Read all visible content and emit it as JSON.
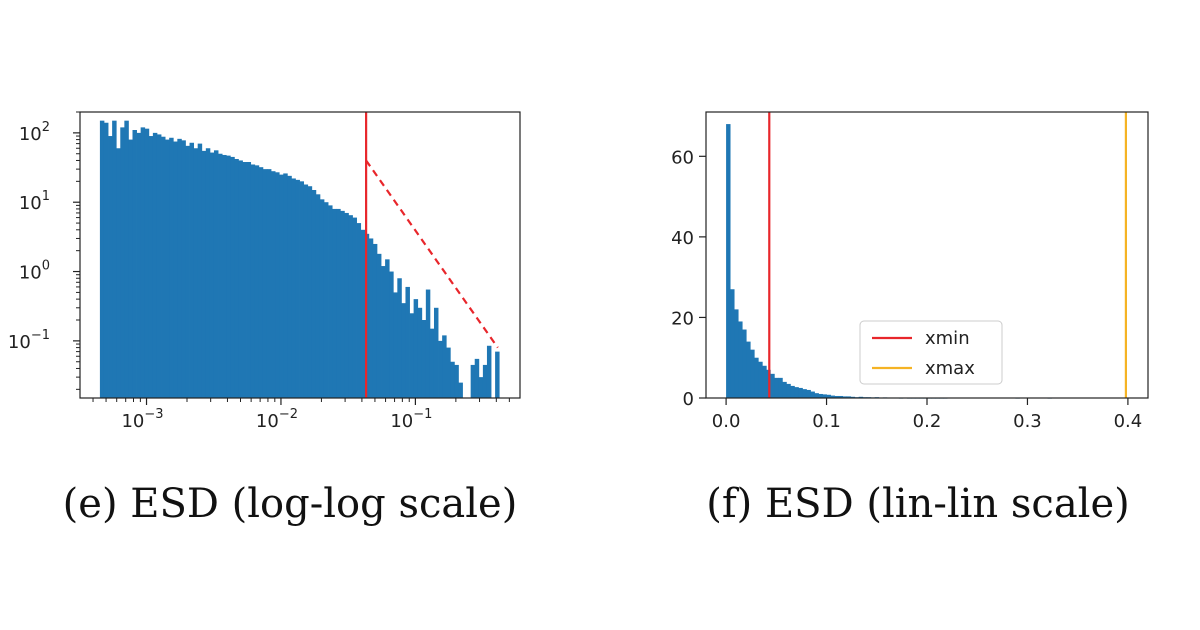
{
  "chart_data": [
    {
      "type": "bar",
      "subtype": "histogram",
      "caption": "(e) ESD (log-log scale)",
      "xscale": "log",
      "yscale": "log",
      "xlim": [
        0.00032,
        0.6
      ],
      "ylim": [
        0.015,
        200
      ],
      "xticks": [
        {
          "value": 0.001,
          "base": "10",
          "exp": "−3"
        },
        {
          "value": 0.01,
          "base": "10",
          "exp": "−2"
        },
        {
          "value": 0.1,
          "base": "10",
          "exp": "−1"
        }
      ],
      "yticks": [
        {
          "value": 100,
          "base": "10",
          "exp": "2"
        },
        {
          "value": 10,
          "base": "10",
          "exp": "1"
        },
        {
          "value": 1,
          "base": "10",
          "exp": "0"
        },
        {
          "value": 0.1,
          "base": "10",
          "exp": "−1"
        }
      ],
      "bin_range": [
        0.00045,
        0.42
      ],
      "bar_color": "#1f77b4",
      "density": [
        150,
        140,
        90,
        150,
        60,
        120,
        150,
        80,
        110,
        100,
        120,
        115,
        90,
        100,
        95,
        88,
        80,
        85,
        75,
        82,
        78,
        65,
        72,
        60,
        70,
        55,
        60,
        52,
        56,
        50,
        48,
        47,
        45,
        42,
        40,
        38,
        38,
        35,
        34,
        32,
        30,
        30,
        28,
        27,
        25,
        26,
        24,
        22,
        21,
        20,
        18,
        17,
        15,
        13,
        11,
        10,
        9,
        8,
        8,
        7.5,
        7,
        6.5,
        6,
        5,
        4,
        3.5,
        3,
        2.5,
        1.8,
        1.2,
        1.5,
        1.0,
        0.5,
        0.8,
        0.35,
        0.6,
        0.25,
        0.4,
        0.3,
        0.2,
        0.55,
        0.15,
        0.3,
        0.1,
        0.12,
        0.08,
        0.05,
        0.045,
        0.025,
        0.012,
        0.012,
        0.045,
        0.055,
        0.03,
        0.045,
        0.085,
        0.012,
        0.07
      ],
      "xmin": 0.043,
      "xmin_color": "#e8262b",
      "fit_line": {
        "x": [
          0.043,
          0.41
        ],
        "y": [
          40,
          0.08
        ],
        "color": "#e8262b",
        "style": "dashed"
      }
    },
    {
      "type": "bar",
      "subtype": "histogram",
      "caption": "(f) ESD (lin-lin scale)",
      "xscale": "linear",
      "yscale": "linear",
      "xlim": [
        -0.02,
        0.42
      ],
      "ylim": [
        0,
        71
      ],
      "xticks": [
        {
          "value": 0.0,
          "label": "0.0"
        },
        {
          "value": 0.1,
          "label": "0.1"
        },
        {
          "value": 0.2,
          "label": "0.2"
        },
        {
          "value": 0.3,
          "label": "0.3"
        },
        {
          "value": 0.4,
          "label": "0.4"
        }
      ],
      "yticks": [
        {
          "value": 0,
          "label": "0"
        },
        {
          "value": 20,
          "label": "20"
        },
        {
          "value": 40,
          "label": "40"
        },
        {
          "value": 60,
          "label": "60"
        }
      ],
      "bin_start": 0.0,
      "bin_width": 0.004,
      "bar_color": "#1f77b4",
      "density": [
        68,
        27,
        22,
        19,
        17,
        14,
        12,
        10,
        9,
        8,
        7,
        6,
        5,
        5,
        4,
        3.5,
        3,
        2.7,
        2.5,
        2.2,
        2,
        1.6,
        1.2,
        1.0,
        0.9,
        0.8,
        0.6,
        0.5,
        0.5,
        0.4,
        0.4,
        0.3,
        0.2,
        0.3,
        0.2,
        0.2,
        0.15,
        0.2,
        0.1,
        0.15,
        0.1,
        0.1,
        0.1,
        0.05,
        0.08,
        0.05,
        0.05,
        0.05,
        0.05,
        0.05,
        0.05,
        0.05,
        0.05,
        0.05,
        0.05,
        0,
        0,
        0,
        0,
        0,
        0,
        0,
        0,
        0,
        0,
        0,
        0,
        0,
        0,
        0,
        0,
        0,
        0.05,
        0,
        0,
        0,
        0,
        0,
        0,
        0,
        0.05
      ],
      "xmin": 0.043,
      "xmax": 0.398,
      "legend": {
        "position": "lower-center",
        "entries": [
          {
            "label": "xmin",
            "color": "#e8262b"
          },
          {
            "label": "xmax",
            "color": "#f5b324"
          }
        ]
      }
    }
  ]
}
